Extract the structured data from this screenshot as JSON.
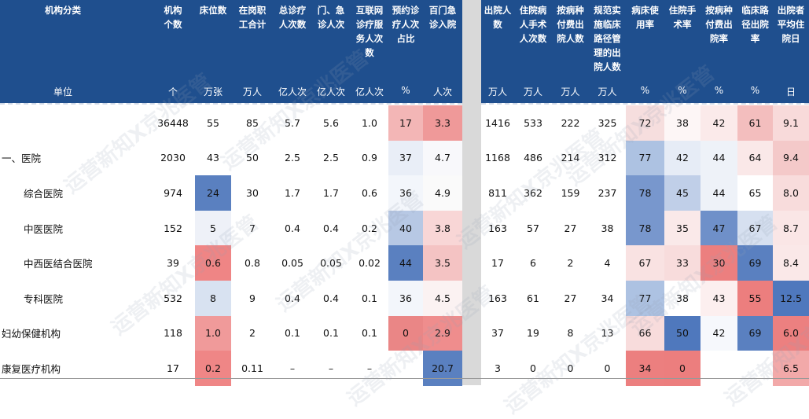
{
  "watermark": "运营新知X京兆医管",
  "left": {
    "headers": [
      "机构分类",
      "机构\n个数",
      "床位数",
      "在岗职\n工合计",
      "总诊疗\n人次数",
      "门、急\n诊人次",
      "互联网\n诊疗服\n务人次\n数",
      "预约诊\n疗人次\n占比",
      "百门急\n诊入院"
    ],
    "unit_label": "单位",
    "units": [
      "个",
      "万张",
      "万人",
      "亿人次",
      "亿人次",
      "亿人次",
      "%",
      "人次"
    ],
    "rows": [
      {
        "label": "",
        "values": [
          "36448",
          "55",
          "85",
          "5.7",
          "5.6",
          "1.0",
          "17",
          "3.3"
        ]
      },
      {
        "label": "一、医院",
        "values": [
          "2030",
          "43",
          "50",
          "2.5",
          "2.5",
          "0.9",
          "37",
          "4.7"
        ]
      },
      {
        "label": "综合医院",
        "values": [
          "974",
          "24",
          "30",
          "1.7",
          "1.7",
          "0.6",
          "36",
          "4.9"
        ]
      },
      {
        "label": "中医医院",
        "values": [
          "152",
          "5",
          "7",
          "0.4",
          "0.4",
          "0.2",
          "40",
          "3.8"
        ]
      },
      {
        "label": "中西医结合医院",
        "values": [
          "39",
          "0.6",
          "0.8",
          "0.05",
          "0.05",
          "0.02",
          "44",
          "3.5"
        ]
      },
      {
        "label": "专科医院",
        "values": [
          "532",
          "8",
          "9",
          "0.4",
          "0.4",
          "0.1",
          "36",
          "4.5"
        ]
      },
      {
        "label": "妇幼保健机构",
        "values": [
          "118",
          "1.0",
          "2",
          "0.1",
          "0.1",
          "0.1",
          "0",
          "2.9"
        ]
      },
      {
        "label": "康复医疗机构",
        "values": [
          "17",
          "0.2",
          "0.11",
          "–",
          "–",
          "–",
          "",
          "20.7"
        ]
      }
    ]
  },
  "right": {
    "headers": [
      "出院人\n数",
      "住院病\n人手术\n人次数",
      "按病种\n付费出\n院人数",
      "规范实\n施临床\n路径管\n理的出\n院人数",
      "病床使\n用率",
      "住院手\n术率",
      "按病种\n付费出\n院率",
      "临床路\n径出院\n率",
      "出院者\n平均住\n院日"
    ],
    "units": [
      "万人",
      "万人",
      "万人",
      "万人",
      "%",
      "%",
      "%",
      "%",
      "日"
    ],
    "rows": [
      [
        "1416",
        "533",
        "222",
        "325",
        "72",
        "38",
        "42",
        "61",
        "9.1"
      ],
      [
        "1168",
        "486",
        "214",
        "312",
        "77",
        "42",
        "44",
        "64",
        "9.4"
      ],
      [
        "811",
        "362",
        "159",
        "237",
        "78",
        "45",
        "44",
        "65",
        "8.0"
      ],
      [
        "163",
        "57",
        "27",
        "38",
        "78",
        "35",
        "47",
        "67",
        "8.7"
      ],
      [
        "17",
        "6",
        "2",
        "4",
        "67",
        "33",
        "30",
        "69",
        "8.4"
      ],
      [
        "163",
        "61",
        "27",
        "34",
        "77",
        "38",
        "43",
        "55",
        "12.5"
      ],
      [
        "37",
        "19",
        "8",
        "13",
        "66",
        "50",
        "42",
        "69",
        "6.0"
      ],
      [
        "3",
        "0",
        "0",
        "0",
        "34",
        "0",
        "",
        "",
        "6.5"
      ]
    ]
  },
  "colors": {
    "header_bg": "#1f4f8e",
    "left_cells": [
      [
        "",
        "",
        "",
        "",
        "",
        "",
        "#f3b6b6",
        "#ef9999"
      ],
      [
        "",
        "",
        "",
        "",
        "",
        "",
        "#e9eef7",
        "#f8f8fb"
      ],
      [
        "",
        "#5a80c0",
        "",
        "",
        "",
        "",
        "#f3f6fb",
        "#fafafa"
      ],
      [
        "",
        "#eef1f8",
        "",
        "",
        "",
        "",
        "#b7c8e4",
        "#f8d6d6"
      ],
      [
        "",
        "#ef8585",
        "",
        "",
        "",
        "",
        "#5a80c0",
        "#f4c3c3"
      ],
      [
        "",
        "#d8e2f1",
        "",
        "",
        "",
        "",
        "#f3f6fb",
        "#fbf2f2"
      ],
      [
        "",
        "#f09a9a",
        "",
        "",
        "",
        "",
        "#ea8686",
        "#ef8d8d"
      ],
      [
        "",
        "#ef8686",
        "",
        "",
        "",
        "",
        "",
        "#5a80c0"
      ]
    ],
    "right_cells": [
      [
        "",
        "",
        "",
        "",
        "#f6dede",
        "#fdf6f6",
        "#fbeaea",
        "#f3bebe",
        "#f8dada"
      ],
      [
        "",
        "",
        "",
        "",
        "#adc2e2",
        "#e6ecf6",
        "#eef2f8",
        "#fae8e8",
        "#f4c9c9"
      ],
      [
        "",
        "",
        "",
        "",
        "#7897cd",
        "#c0cfe8",
        "#eef2f8",
        "#ffffff",
        "#f8dcdc"
      ],
      [
        "",
        "",
        "",
        "",
        "#7897cd",
        "#fae9e9",
        "#6f90c9",
        "#d6e0f0",
        "#fae6e6"
      ],
      [
        "",
        "",
        "",
        "",
        "#f9e2e2",
        "#f8dcdc",
        "#ec7f7f",
        "#5a80c0",
        "#fae8e8"
      ],
      [
        "",
        "",
        "",
        "",
        "#adc2e2",
        "#ffffff",
        "#fcefef",
        "#ec7e7e",
        "#4f78bd"
      ],
      [
        "",
        "",
        "",
        "",
        "#f8dcdc",
        "#4f78bd",
        "#f6f8fc",
        "#5a80c0",
        "#ec8080"
      ],
      [
        "",
        "",
        "",
        "",
        "#ec7f7f",
        "#ec7e7e",
        "",
        "",
        "#f2a9a9"
      ]
    ]
  }
}
